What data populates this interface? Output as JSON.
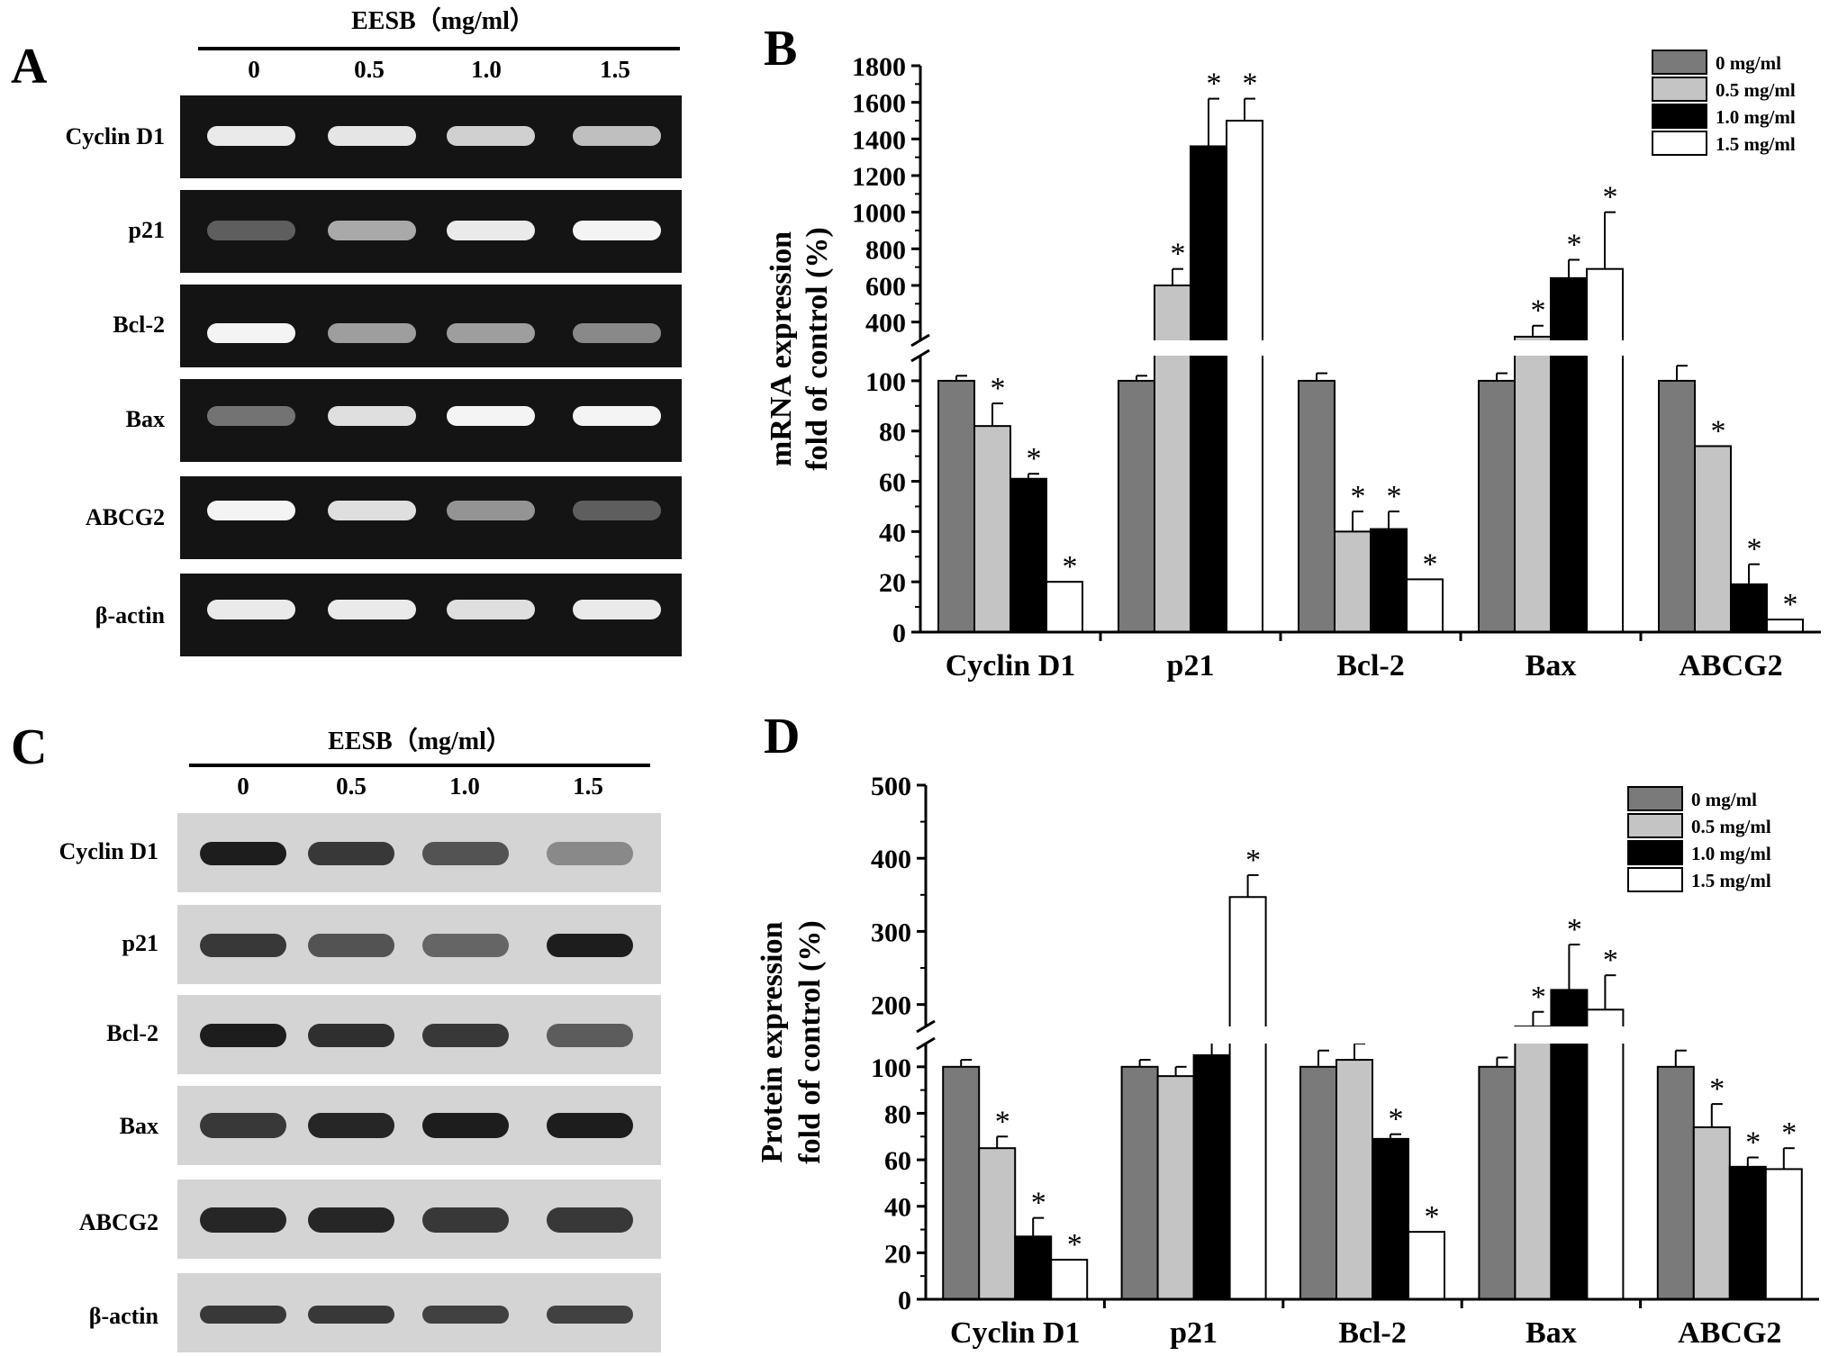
{
  "panels": {
    "A": {
      "letter": "A",
      "treatment_label": "EESB（mg/ml）",
      "doses": [
        "0",
        "0.5",
        "1.0",
        "1.5"
      ],
      "bands": [
        {
          "label": "Cyclin D1",
          "intensity": [
            0.9,
            0.88,
            0.78,
            0.7
          ]
        },
        {
          "label": "p21",
          "intensity": [
            0.25,
            0.6,
            0.9,
            0.95
          ]
        },
        {
          "label": "Bcl-2",
          "intensity": [
            0.95,
            0.55,
            0.55,
            0.45
          ]
        },
        {
          "label": "Bax",
          "intensity": [
            0.35,
            0.85,
            0.95,
            0.95
          ]
        },
        {
          "label": "ABCG2",
          "intensity": [
            0.95,
            0.85,
            0.5,
            0.25
          ]
        },
        {
          "label": "β-actin",
          "intensity": [
            0.9,
            0.9,
            0.85,
            0.9
          ]
        }
      ],
      "background": "#141414"
    },
    "C": {
      "letter": "C",
      "treatment_label": "EESB（mg/ml）",
      "doses": [
        "0",
        "0.5",
        "1.0",
        "1.5"
      ],
      "bands": [
        {
          "label": "Cyclin D1",
          "intensity": [
            0.95,
            0.8,
            0.65,
            0.35
          ]
        },
        {
          "label": "p21",
          "intensity": [
            0.8,
            0.65,
            0.55,
            0.95
          ]
        },
        {
          "label": "Bcl-2",
          "intensity": [
            0.95,
            0.85,
            0.8,
            0.6
          ]
        },
        {
          "label": "Bax",
          "intensity": [
            0.8,
            0.9,
            0.95,
            0.95
          ]
        },
        {
          "label": "ABCG2",
          "intensity": [
            0.9,
            0.9,
            0.8,
            0.8
          ]
        },
        {
          "label": "β-actin",
          "intensity": [
            0.8,
            0.8,
            0.75,
            0.75
          ]
        }
      ],
      "background": "#d4d4d4"
    }
  },
  "chart_data": [
    {
      "panel": "B",
      "type": "bar",
      "letter": "B",
      "ylabel": [
        "mRNA expression",
        "fold of control (%)"
      ],
      "categories": [
        "Cyclin D1",
        "p21",
        "Bcl-2",
        "Bax",
        "ABCG2"
      ],
      "series": [
        {
          "name": "0 mg/ml",
          "color": "#7a7a7a",
          "values": [
            100,
            100,
            100,
            100,
            100
          ],
          "errors": [
            2,
            2,
            3,
            3,
            6
          ],
          "sig": [
            false,
            false,
            false,
            false,
            false
          ]
        },
        {
          "name": "0.5 mg/ml",
          "color": "#c4c4c4",
          "values": [
            82,
            600,
            40,
            320,
            74
          ],
          "errors": [
            9,
            90,
            8,
            60,
            0
          ],
          "sig": [
            true,
            true,
            true,
            true,
            true
          ]
        },
        {
          "name": "1.0 mg/ml",
          "color": "#000000",
          "values": [
            61,
            1360,
            41,
            640,
            19
          ],
          "errors": [
            2,
            260,
            7,
            100,
            8
          ],
          "sig": [
            true,
            true,
            true,
            true,
            true
          ]
        },
        {
          "name": "1.5 mg/ml",
          "color": "#ffffff",
          "values": [
            20,
            1500,
            21,
            690,
            5
          ],
          "errors": [
            0,
            120,
            0,
            310,
            0
          ],
          "sig": [
            true,
            true,
            true,
            true,
            true
          ]
        }
      ],
      "axis_break": {
        "lower": [
          0,
          110
        ],
        "upper": [
          300,
          1800
        ]
      },
      "yticks_lower": [
        0,
        20,
        40,
        60,
        80,
        100
      ],
      "yticks_upper": [
        400,
        600,
        800,
        1000,
        1200,
        1400,
        1600,
        1800
      ],
      "star": "*",
      "legend_position": "top-right"
    },
    {
      "panel": "D",
      "type": "bar",
      "letter": "D",
      "ylabel": [
        "Protein expression",
        "fold of control (%)"
      ],
      "categories": [
        "Cyclin D1",
        "p21",
        "Bcl-2",
        "Bax",
        "ABCG2"
      ],
      "series": [
        {
          "name": "0 mg/ml",
          "color": "#7a7a7a",
          "values": [
            100,
            100,
            100,
            100,
            100
          ],
          "errors": [
            3,
            3,
            7,
            4,
            7
          ],
          "sig": [
            false,
            false,
            false,
            false,
            false
          ]
        },
        {
          "name": "0.5 mg/ml",
          "color": "#c4c4c4",
          "values": [
            65,
            96,
            103,
            170,
            74
          ],
          "errors": [
            5,
            4,
            7,
            20,
            10
          ],
          "sig": [
            true,
            false,
            false,
            true,
            true
          ]
        },
        {
          "name": "1.0 mg/ml",
          "color": "#000000",
          "values": [
            27,
            105,
            69,
            220,
            57
          ],
          "errors": [
            8,
            14,
            2,
            62,
            4
          ],
          "sig": [
            true,
            false,
            true,
            true,
            true
          ]
        },
        {
          "name": "1.5 mg/ml",
          "color": "#ffffff",
          "values": [
            17,
            347,
            29,
            193,
            56
          ],
          "errors": [
            0,
            30,
            0,
            47,
            9
          ],
          "sig": [
            true,
            true,
            true,
            true,
            true
          ]
        }
      ],
      "axis_break": {
        "lower": [
          0,
          110
        ],
        "upper": [
          170,
          500
        ]
      },
      "yticks_lower": [
        0,
        20,
        40,
        60,
        80,
        100
      ],
      "yticks_upper": [
        200,
        300,
        400,
        500
      ],
      "star": "*",
      "legend_position": "top-right"
    }
  ]
}
